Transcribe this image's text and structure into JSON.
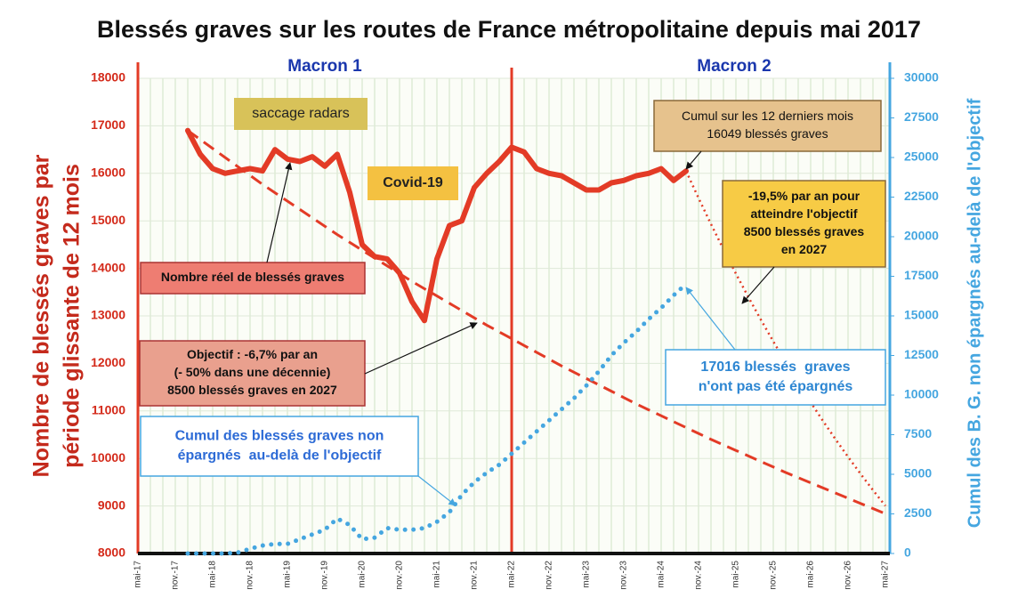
{
  "chart_data": {
    "type": "line",
    "title": "Blessés graves sur les routes de France métropolitaine depuis mai 2017",
    "ylabel": [
      "Nombre de blessés graves par",
      "période glissante de 12 mois"
    ],
    "y2label": "Cumul des B. G. non épargnés au-delà de l'objectif",
    "periods": [
      "Macron 1",
      "Macron 2"
    ],
    "categories": [
      "mai-17",
      null,
      null,
      "nov.-17",
      null,
      null,
      "mai-18",
      null,
      null,
      "nov.-18",
      null,
      null,
      "mai-19",
      null,
      null,
      "nov.-19",
      null,
      null,
      "mai-20",
      null,
      null,
      "nov.-20",
      null,
      null,
      "mai-21",
      null,
      null,
      "nov.-21",
      null,
      null,
      "mai-22",
      null,
      null,
      "nov.-22",
      null,
      null,
      "mai-23",
      null,
      null,
      "nov.-23",
      null,
      null,
      "mai-24",
      null,
      null,
      "nov.-24",
      null,
      null,
      "mai-25",
      null,
      null,
      "nov.-25",
      null,
      null,
      "mai-26",
      null,
      null,
      "nov.-26",
      null,
      null,
      "mai-27"
    ],
    "ylim": [
      8000,
      18000
    ],
    "yticks": [
      8000,
      9000,
      10000,
      11000,
      12000,
      13000,
      14000,
      15000,
      16000,
      17000,
      18000
    ],
    "y2lim": [
      0,
      30000
    ],
    "y2ticks": [
      0,
      2500,
      5000,
      7500,
      10000,
      12500,
      15000,
      17500,
      20000,
      22500,
      25000,
      27500,
      30000
    ],
    "grid": true,
    "series": [
      {
        "color": "#e33b26",
        "style": "solid",
        "values": [
          null,
          null,
          null,
          null,
          16900,
          16400,
          16100,
          16000,
          16050,
          16100,
          16050,
          16500,
          16300,
          16250,
          16350,
          16150,
          16400,
          15600,
          14500,
          14250,
          14200,
          13900,
          13300,
          12900,
          14200,
          14900,
          15000,
          15700,
          16000,
          16250,
          16550,
          16450,
          16100,
          16000,
          15950,
          15800,
          15650,
          15650,
          15800,
          15850,
          15950,
          16000,
          16100,
          15850,
          16049,
          null,
          null,
          null,
          null,
          null,
          null,
          null,
          null,
          null,
          null,
          null,
          null,
          null,
          null,
          null,
          null
        ]
      },
      {
        "color": "#e33b26",
        "style": "dashed",
        "values": [
          null,
          null,
          null,
          null,
          16900,
          16711,
          16522,
          16334,
          16145,
          15957,
          15768,
          15592,
          15416,
          15240,
          15063,
          14887,
          14711,
          14547,
          14382,
          14218,
          14054,
          13889,
          13725,
          13572,
          13419,
          13266,
          13112,
          12959,
          12806,
          12663,
          12520,
          12377,
          12234,
          12091,
          11948,
          11815,
          11681,
          11548,
          11415,
          11281,
          11148,
          11023,
          10899,
          10774,
          10650,
          10526,
          10401,
          10285,
          10169,
          10053,
          9936,
          9820,
          9704,
          9596,
          9487,
          9379,
          9271,
          9162,
          9054,
          8946,
          8837
        ]
      },
      {
        "color": "#e33b26",
        "style": "dotted",
        "values": [
          null,
          null,
          null,
          null,
          null,
          null,
          null,
          null,
          null,
          null,
          null,
          null,
          null,
          null,
          null,
          null,
          null,
          null,
          null,
          null,
          null,
          null,
          null,
          null,
          null,
          null,
          null,
          null,
          null,
          null,
          null,
          null,
          null,
          null,
          null,
          null,
          null,
          null,
          null,
          null,
          null,
          null,
          null,
          null,
          16049,
          15479,
          14930,
          14400,
          13889,
          13396,
          12921,
          12462,
          12020,
          11593,
          11182,
          10785,
          10402,
          10033,
          9677,
          9334,
          9002
        ]
      },
      {
        "color": "#45a6e0",
        "style": "dots",
        "axis": "y2",
        "values": [
          null,
          null,
          null,
          null,
          0,
          0,
          0,
          0,
          50,
          300,
          500,
          600,
          600,
          900,
          1200,
          1500,
          2200,
          1800,
          900,
          1000,
          1600,
          1500,
          1500,
          1600,
          2000,
          2600,
          3700,
          4500,
          5100,
          5600,
          6300,
          7000,
          7700,
          8400,
          9100,
          9800,
          10600,
          11500,
          12500,
          13300,
          14000,
          14800,
          15500,
          16300,
          17016,
          null,
          null,
          null,
          null,
          null,
          null,
          null,
          null,
          null,
          null,
          null,
          null,
          null,
          null,
          null,
          null
        ]
      }
    ],
    "annotations": [
      {
        "lines": [
          "saccage radars"
        ]
      },
      {
        "lines": [
          "Covid-19"
        ]
      },
      {
        "lines": [
          "Nombre réel de blessés graves"
        ]
      },
      {
        "lines": [
          "Objectif : -6,7% par an",
          "(- 50% dans une décennie)",
          "8500 blessés graves en 2027"
        ]
      },
      {
        "lines": [
          "Cumul sur les 12 derniers mois",
          "16049 blessés graves"
        ]
      },
      {
        "lines": [
          "-19,5% par an pour",
          "atteindre l'objectif",
          "8500 blessés graves",
          "en 2027"
        ]
      },
      {
        "lines": [
          "17016 blessés  graves",
          "n'ont pas été épargnés"
        ]
      },
      {
        "lines": [
          "Cumul des blessés graves non",
          "épargnés  au-delà de l'objectif"
        ]
      }
    ]
  }
}
